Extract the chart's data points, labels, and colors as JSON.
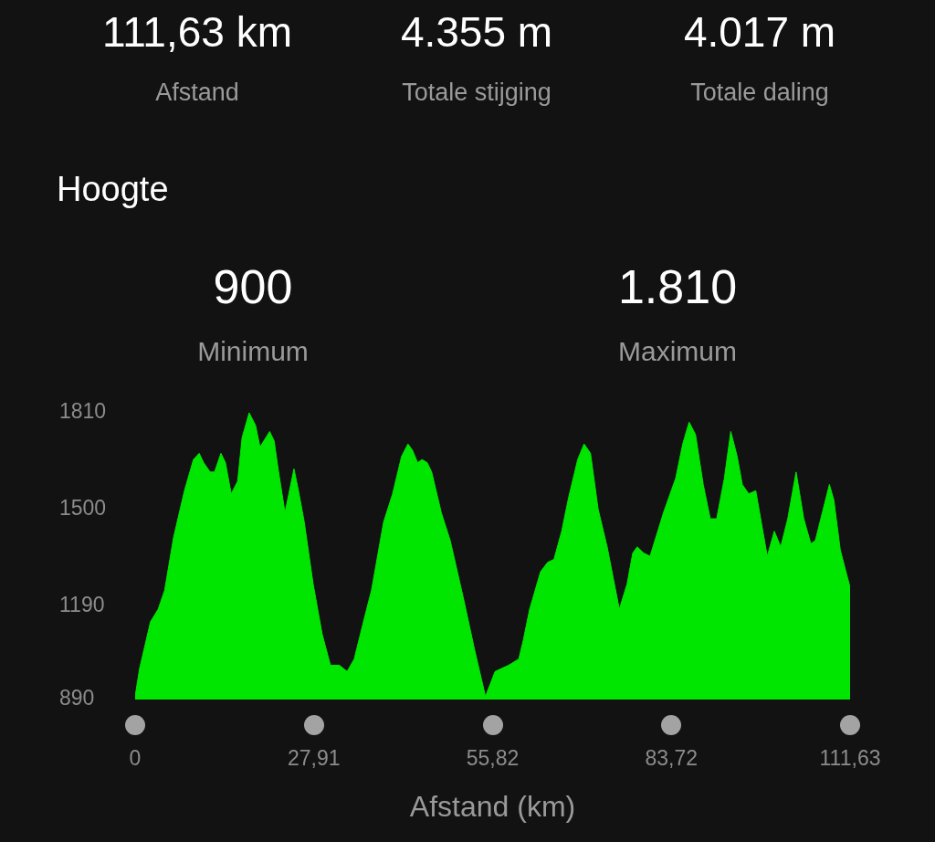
{
  "chart_data": {
    "type": "area",
    "title": "Hoogte",
    "xlabel": "Afstand (km)",
    "annotations": [
      "111,63 km",
      "Afstand",
      "4.355 m",
      "Totale stijging",
      "4.017 m",
      "Totale daling",
      "900",
      "Minimum",
      "1.810",
      "Maximum"
    ],
    "x": [
      0,
      0.7,
      2.4,
      3.6,
      4.6,
      6.0,
      7.7,
      9.1,
      10.0,
      10.7,
      11.7,
      12.4,
      13.4,
      14.1,
      15.0,
      16.0,
      16.7,
      17.8,
      18.8,
      19.5,
      21.0,
      21.7,
      22.4,
      23.4,
      24.8,
      25.5,
      26.4,
      27.8,
      29.2,
      30.5,
      31.9,
      33.1,
      34.2,
      35.9,
      36.9,
      38.8,
      40.2,
      41.6,
      42.6,
      43.3,
      44.1,
      44.8,
      45.6,
      46.3,
      47.8,
      49.2,
      51.2,
      53.0,
      54.7,
      56.2,
      58.3,
      59.9,
      60.6,
      61.6,
      63.3,
      64.4,
      65.4,
      66.6,
      67.7,
      69.1,
      70.1,
      71.1,
      72.3,
      73.7,
      75.6,
      76.8,
      77.7,
      78.4,
      79.4,
      80.4,
      82.5,
      84.4,
      85.5,
      86.5,
      87.5,
      88.7,
      89.8,
      90.8,
      92.0,
      93.0,
      94.0,
      94.8,
      95.8,
      96.9,
      98.7,
      99.8,
      100.8,
      101.9,
      103.2,
      104.4,
      105.5,
      106.2,
      108.4,
      109.1,
      110.1,
      111.5,
      111.63
    ],
    "values": [
      900,
      990,
      1140,
      1180,
      1240,
      1410,
      1560,
      1660,
      1680,
      1650,
      1620,
      1620,
      1680,
      1650,
      1550,
      1590,
      1730,
      1810,
      1770,
      1700,
      1750,
      1720,
      1620,
      1490,
      1630,
      1560,
      1460,
      1260,
      1100,
      1000,
      1000,
      980,
      1020,
      1160,
      1240,
      1460,
      1550,
      1670,
      1710,
      1690,
      1650,
      1660,
      1650,
      1620,
      1490,
      1400,
      1220,
      1050,
      900,
      980,
      1000,
      1020,
      1080,
      1180,
      1300,
      1330,
      1340,
      1430,
      1540,
      1660,
      1710,
      1680,
      1500,
      1380,
      1180,
      1260,
      1360,
      1380,
      1360,
      1350,
      1490,
      1600,
      1710,
      1780,
      1740,
      1580,
      1470,
      1470,
      1600,
      1750,
      1670,
      1580,
      1550,
      1560,
      1350,
      1430,
      1380,
      1470,
      1620,
      1470,
      1390,
      1400,
      1580,
      1530,
      1370,
      1260,
      1250
    ],
    "color": "#00e600",
    "xlim": [
      0,
      111.63
    ],
    "xticks": [
      0,
      {
        "value": 27.91,
        "label": "27,91"
      },
      {
        "value": 55.82,
        "label": "55,82"
      },
      {
        "value": 83.72,
        "label": "83,72"
      },
      {
        "value": 111.63,
        "label": "111,63"
      }
    ],
    "ylim": [
      890,
      1810
    ],
    "yticks": [
      890,
      1190,
      1500,
      1810
    ],
    "grid": false,
    "legend": false
  }
}
